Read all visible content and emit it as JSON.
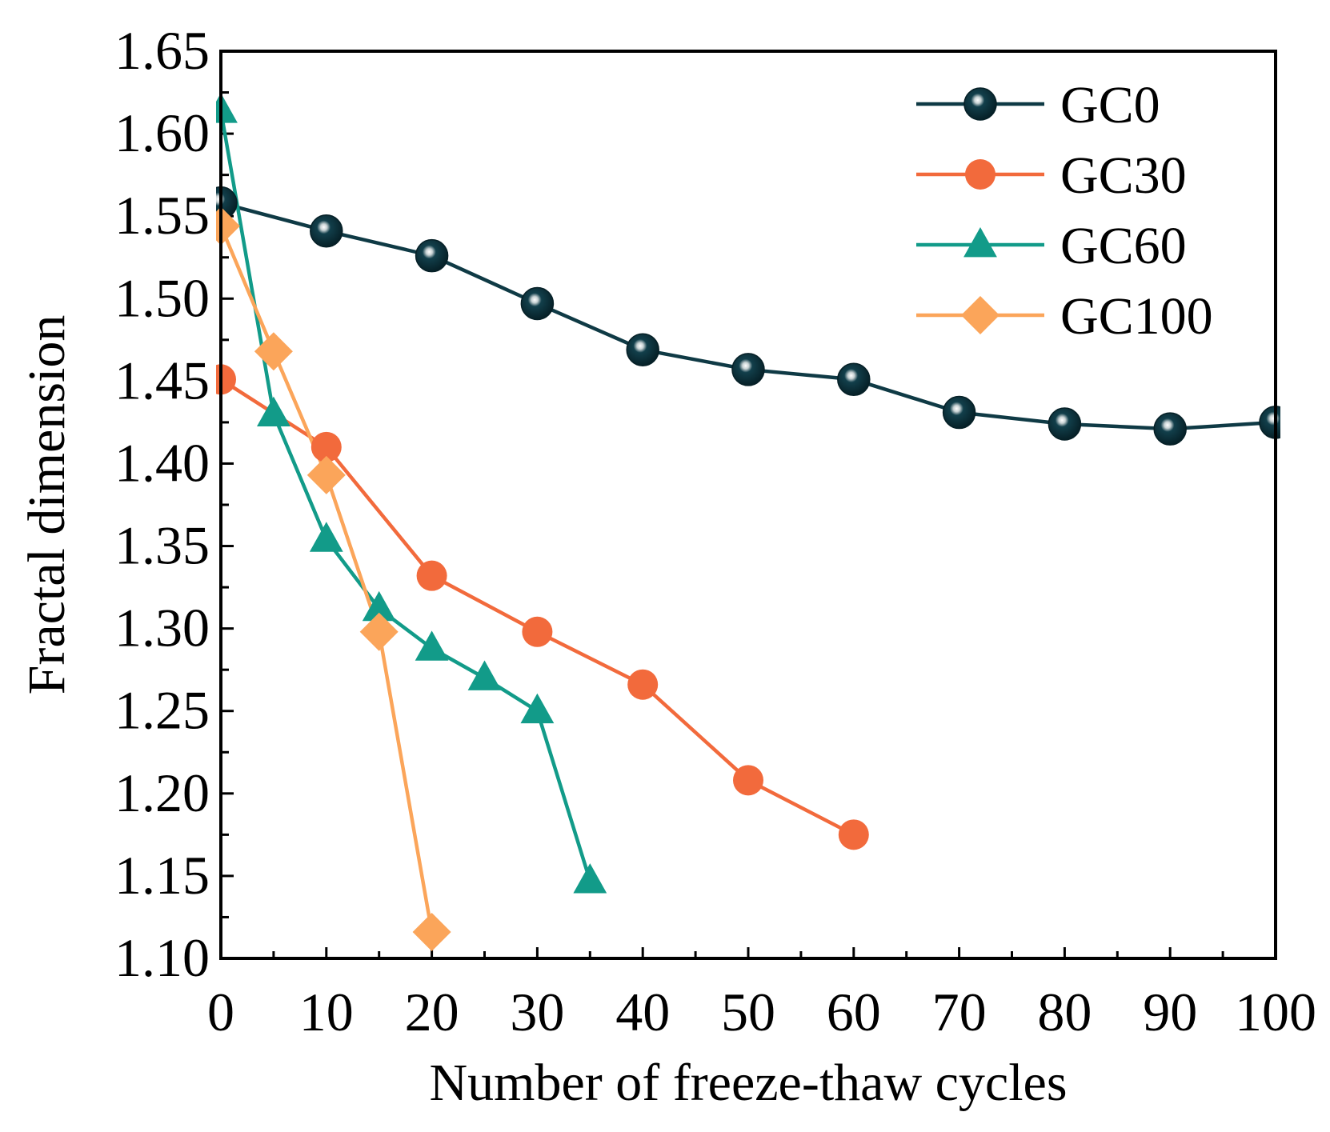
{
  "chart_data": {
    "type": "line",
    "title": "",
    "xlabel": "Number of freeze-thaw cycles",
    "ylabel": "Fractal dimension",
    "xlim": [
      0,
      100
    ],
    "ylim": [
      1.1,
      1.65
    ],
    "xticks": [
      "0",
      "10",
      "20",
      "30",
      "40",
      "50",
      "60",
      "70",
      "80",
      "90",
      "100"
    ],
    "yticks": [
      "1.10",
      "1.15",
      "1.20",
      "1.25",
      "1.30",
      "1.35",
      "1.40",
      "1.45",
      "1.50",
      "1.55",
      "1.60",
      "1.65"
    ],
    "grid": false,
    "legend_position": "top-right",
    "series": [
      {
        "name": "GC0",
        "marker": "sphere",
        "color": "#0f3a45",
        "x": [
          0,
          10,
          20,
          30,
          40,
          50,
          60,
          70,
          80,
          90,
          100
        ],
        "y": [
          1.558,
          1.541,
          1.526,
          1.497,
          1.469,
          1.457,
          1.451,
          1.431,
          1.424,
          1.421,
          1.425
        ]
      },
      {
        "name": "GC30",
        "marker": "circle",
        "color": "#f26a3c",
        "x": [
          0,
          10,
          20,
          30,
          40,
          50,
          60
        ],
        "y": [
          1.451,
          1.41,
          1.332,
          1.298,
          1.266,
          1.208,
          1.175
        ]
      },
      {
        "name": "GC60",
        "marker": "triangle",
        "color": "#129b89",
        "x": [
          0,
          5,
          10,
          15,
          20,
          25,
          30,
          35
        ],
        "y": [
          1.614,
          1.43,
          1.354,
          1.312,
          1.288,
          1.27,
          1.25,
          1.147
        ]
      },
      {
        "name": "GC100",
        "marker": "diamond",
        "color": "#fba55a",
        "x": [
          0,
          5,
          10,
          15,
          20
        ],
        "y": [
          1.544,
          1.468,
          1.393,
          1.298,
          1.116
        ]
      }
    ]
  }
}
